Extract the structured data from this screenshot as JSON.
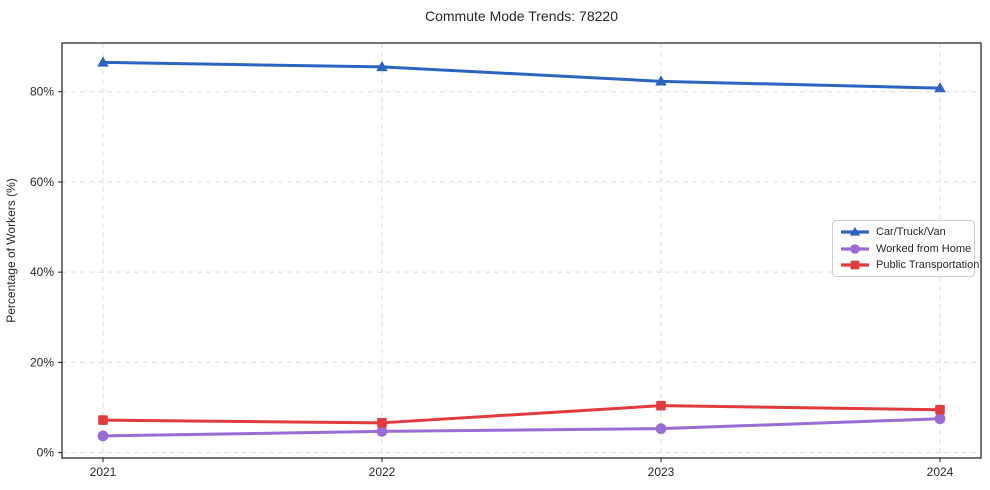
{
  "chart_data": {
    "type": "line",
    "title": "Commute Mode Trends: 78220",
    "ylabel": "Percentage of Workers (%)",
    "xlabel": "",
    "categories": [
      "2021",
      "2022",
      "2023",
      "2024"
    ],
    "series": [
      {
        "name": "Car/Truck/Van",
        "marker": "triangle",
        "color": "#2b64c1",
        "values": [
          86.5,
          85.5,
          82.3,
          80.8
        ]
      },
      {
        "name": "Worked from Home",
        "marker": "circle",
        "color": "#9b6cd6",
        "values": [
          3.7,
          4.7,
          5.3,
          7.5
        ]
      },
      {
        "name": "Public Transportation",
        "marker": "square",
        "color": "#e13b3b",
        "values": [
          7.2,
          6.6,
          10.4,
          9.5
        ]
      }
    ],
    "yticks": [
      0,
      20,
      40,
      60,
      80
    ],
    "ytick_labels": [
      "0%",
      "20%",
      "40%",
      "60%",
      "80%"
    ],
    "ylim": [
      -1.2,
      90.8
    ],
    "grid": "dashed",
    "legend_position": "center-right"
  },
  "colors": {
    "grid": "#dcdcdc",
    "spine": "#1a1a1a",
    "text": "#262626",
    "legend_border": "#cccccc",
    "background": "#ffffff"
  }
}
